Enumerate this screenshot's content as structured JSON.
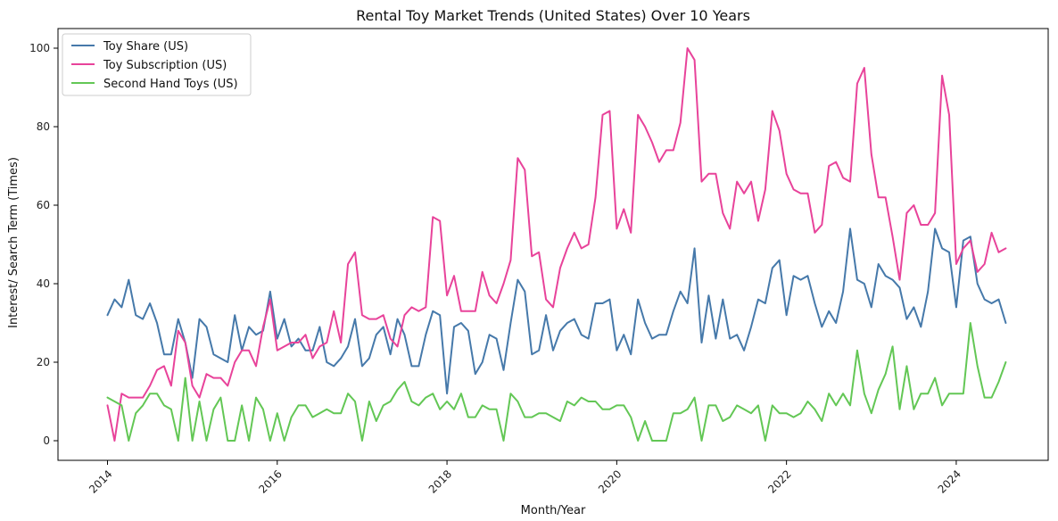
{
  "chart_data": {
    "type": "line",
    "title": "Rental Toy Market Trends (United States) Over 10 Years",
    "xlabel": "Month/Year",
    "ylabel": "Interest/ Search Term (Times)",
    "x_start": "2014-01",
    "x_ticks": [
      "2014",
      "2016",
      "2018",
      "2020",
      "2022",
      "2024"
    ],
    "y_ticks": [
      0,
      20,
      40,
      60,
      80,
      100
    ],
    "xlim": [
      "2013-06",
      "2025-02"
    ],
    "ylim": [
      -5,
      105
    ],
    "grid": false,
    "legend_position": "top-left",
    "series": [
      {
        "name": "Toy Share (US)",
        "color": "#4679aa",
        "values": [
          32,
          36,
          34,
          41,
          32,
          31,
          35,
          30,
          22,
          22,
          31,
          25,
          16,
          31,
          29,
          22,
          21,
          20,
          32,
          23,
          29,
          27,
          28,
          38,
          26,
          31,
          24,
          26,
          23,
          23,
          29,
          20,
          19,
          21,
          24,
          31,
          19,
          21,
          27,
          29,
          22,
          31,
          27,
          19,
          19,
          27,
          33,
          32,
          12,
          29,
          30,
          28,
          17,
          20,
          27,
          26,
          18,
          30,
          41,
          38,
          22,
          23,
          32,
          23,
          28,
          30,
          31,
          27,
          26,
          35,
          35,
          36,
          23,
          27,
          22,
          36,
          30,
          26,
          27,
          27,
          33,
          38,
          35,
          49,
          25,
          37,
          26,
          36,
          26,
          27,
          23,
          29,
          36,
          35,
          44,
          46,
          32,
          42,
          41,
          42,
          35,
          29,
          33,
          30,
          38,
          54,
          41,
          40,
          34,
          45,
          42,
          41,
          39,
          31,
          34,
          29,
          38,
          54,
          49,
          48,
          34,
          51,
          52,
          40,
          36,
          35,
          36,
          30
        ]
      },
      {
        "name": "Toy Subscription (US)",
        "color": "#e8439a",
        "values": [
          9,
          0,
          12,
          11,
          11,
          11,
          14,
          18,
          19,
          14,
          28,
          25,
          14,
          11,
          17,
          16,
          16,
          14,
          20,
          23,
          23,
          19,
          29,
          36,
          23,
          24,
          25,
          25,
          27,
          21,
          24,
          25,
          33,
          25,
          45,
          48,
          32,
          31,
          31,
          32,
          26,
          24,
          32,
          34,
          33,
          34,
          57,
          56,
          37,
          42,
          33,
          33,
          33,
          43,
          37,
          35,
          40,
          46,
          72,
          69,
          47,
          48,
          36,
          34,
          44,
          49,
          53,
          49,
          50,
          62,
          83,
          84,
          54,
          59,
          53,
          83,
          80,
          76,
          71,
          74,
          74,
          81,
          100,
          97,
          66,
          68,
          68,
          58,
          54,
          66,
          63,
          66,
          56,
          64,
          84,
          79,
          68,
          64,
          63,
          63,
          53,
          55,
          70,
          71,
          67,
          66,
          91,
          95,
          73,
          62,
          62,
          52,
          41,
          58,
          60,
          55,
          55,
          58,
          93,
          83,
          45,
          49,
          51,
          43,
          45,
          53,
          48,
          49
        ]
      },
      {
        "name": "Second Hand Toys (US)",
        "color": "#63c755",
        "values": [
          11,
          10,
          9,
          0,
          7,
          9,
          12,
          12,
          9,
          8,
          0,
          16,
          0,
          10,
          0,
          8,
          11,
          0,
          0,
          9,
          0,
          11,
          8,
          0,
          7,
          0,
          6,
          9,
          9,
          6,
          7,
          8,
          7,
          7,
          12,
          10,
          0,
          10,
          5,
          9,
          10,
          13,
          15,
          10,
          9,
          11,
          12,
          8,
          10,
          8,
          12,
          6,
          6,
          9,
          8,
          8,
          0,
          12,
          10,
          6,
          6,
          7,
          7,
          6,
          5,
          10,
          9,
          11,
          10,
          10,
          8,
          8,
          9,
          9,
          6,
          0,
          5,
          0,
          0,
          0,
          7,
          7,
          8,
          11,
          0,
          9,
          9,
          5,
          6,
          9,
          8,
          7,
          9,
          0,
          9,
          7,
          7,
          6,
          7,
          10,
          8,
          5,
          12,
          9,
          12,
          9,
          23,
          12,
          7,
          13,
          17,
          24,
          8,
          19,
          8,
          12,
          12,
          16,
          9,
          12,
          12,
          12,
          30,
          19,
          11,
          11,
          15,
          20
        ]
      }
    ]
  }
}
